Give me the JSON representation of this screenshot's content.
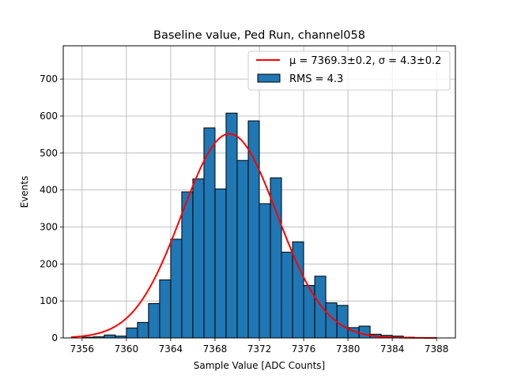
{
  "chart_data": {
    "type": "bar",
    "title": "Baseline value, Ped Run, channel058",
    "xlabel": "Sample Value [ADC Counts]",
    "ylabel": "Events",
    "xlim": [
      7354.3,
      7389.7
    ],
    "ylim": [
      0,
      790
    ],
    "xticks": [
      7356,
      7360,
      7364,
      7368,
      7372,
      7376,
      7380,
      7384,
      7388
    ],
    "yticks": [
      0,
      100,
      200,
      300,
      400,
      500,
      600,
      700
    ],
    "grid": true,
    "legend_position": "top-right",
    "histogram": {
      "name": "RMS = 4.3",
      "color": "#1f77b4",
      "bins": [
        {
          "x0": 7356.0,
          "x1": 7357.0,
          "value": 2
        },
        {
          "x0": 7357.0,
          "x1": 7358.0,
          "value": 3
        },
        {
          "x0": 7358.0,
          "x1": 7359.0,
          "value": 8
        },
        {
          "x0": 7359.0,
          "x1": 7360.0,
          "value": 5
        },
        {
          "x0": 7360.0,
          "x1": 7361.0,
          "value": 27
        },
        {
          "x0": 7361.0,
          "x1": 7362.0,
          "value": 42
        },
        {
          "x0": 7362.0,
          "x1": 7363.0,
          "value": 93
        },
        {
          "x0": 7363.0,
          "x1": 7364.0,
          "value": 157
        },
        {
          "x0": 7364.0,
          "x1": 7365.0,
          "value": 267
        },
        {
          "x0": 7365.0,
          "x1": 7366.0,
          "value": 395
        },
        {
          "x0": 7366.0,
          "x1": 7367.0,
          "value": 430
        },
        {
          "x0": 7367.0,
          "x1": 7368.0,
          "value": 568
        },
        {
          "x0": 7368.0,
          "x1": 7369.0,
          "value": 403
        },
        {
          "x0": 7369.0,
          "x1": 7370.0,
          "value": 608
        },
        {
          "x0": 7370.0,
          "x1": 7371.0,
          "value": 480
        },
        {
          "x0": 7371.0,
          "x1": 7372.0,
          "value": 587
        },
        {
          "x0": 7372.0,
          "x1": 7373.0,
          "value": 363
        },
        {
          "x0": 7373.0,
          "x1": 7374.0,
          "value": 433
        },
        {
          "x0": 7374.0,
          "x1": 7375.0,
          "value": 232
        },
        {
          "x0": 7375.0,
          "x1": 7376.0,
          "value": 260
        },
        {
          "x0": 7376.0,
          "x1": 7377.0,
          "value": 142
        },
        {
          "x0": 7377.0,
          "x1": 7378.0,
          "value": 167
        },
        {
          "x0": 7378.0,
          "x1": 7379.0,
          "value": 95
        },
        {
          "x0": 7379.0,
          "x1": 7380.0,
          "value": 88
        },
        {
          "x0": 7380.0,
          "x1": 7381.0,
          "value": 28
        },
        {
          "x0": 7381.0,
          "x1": 7382.0,
          "value": 32
        },
        {
          "x0": 7382.0,
          "x1": 7383.0,
          "value": 10
        },
        {
          "x0": 7383.0,
          "x1": 7384.0,
          "value": 7
        },
        {
          "x0": 7384.0,
          "x1": 7385.0,
          "value": 5
        },
        {
          "x0": 7385.0,
          "x1": 7386.0,
          "value": 2
        },
        {
          "x0": 7386.0,
          "x1": 7387.0,
          "value": 1
        },
        {
          "x0": 7387.0,
          "x1": 7388.0,
          "value": 1
        }
      ]
    },
    "fit": {
      "name": "μ = 7369.3±0.2, σ = 4.3±0.2",
      "color": "#ff0000",
      "mu": 7369.3,
      "sigma": 4.3,
      "amplitude": 552,
      "range": [
        7355.0,
        7388.0
      ]
    }
  }
}
